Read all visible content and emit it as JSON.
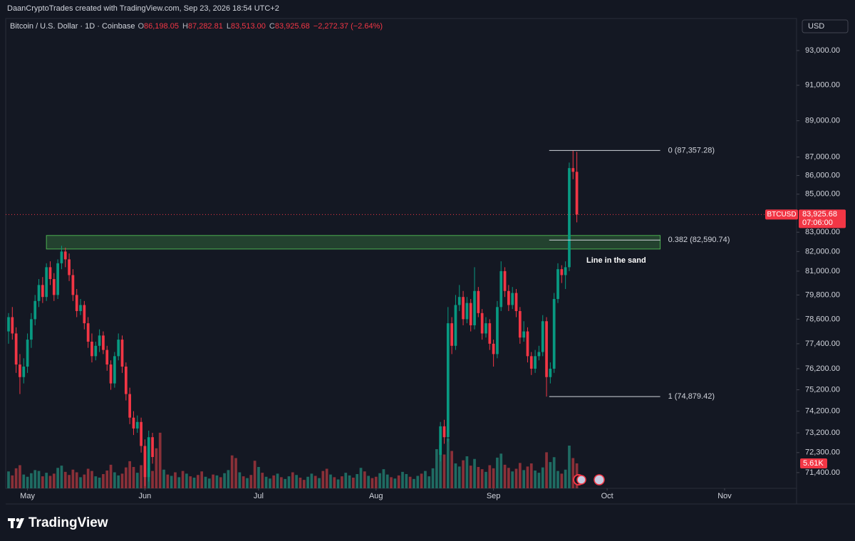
{
  "chart_data": {
    "type": "candlestick",
    "watermark": "DaanCryptoTrades created with TradingView.com, Sep 23, 2026 18:54 UTC+2",
    "symbol": "Bitcoin / U.S. Dollar · 1D · Coinbase",
    "ohlc_fields": [
      {
        "key": "O",
        "label": "86,198.05"
      },
      {
        "key": "H",
        "label": "87,282.81"
      },
      {
        "key": "L",
        "label": "83,513.00"
      },
      {
        "key": "C",
        "label": "83,925.68"
      }
    ],
    "change": "−2,272.37 (−2.64%)",
    "currency": "USD",
    "brand": "TradingView",
    "log_scale": true,
    "grid": false,
    "up_color": "#089981",
    "down_color": "#f23645",
    "xlim": [
      -0.75,
      208
    ],
    "xticks": [
      {
        "value": 5,
        "label": "May"
      },
      {
        "value": 36,
        "label": "Jun"
      },
      {
        "value": 66,
        "label": "Jul"
      },
      {
        "value": 97,
        "label": "Aug"
      },
      {
        "value": 128,
        "label": "Sep"
      },
      {
        "value": 158,
        "label": "Oct"
      },
      {
        "value": 189,
        "label": "Nov"
      }
    ],
    "ylim": [
      70700,
      94800
    ],
    "yticks": [
      {
        "value": 93000,
        "label": "93,000.00"
      },
      {
        "value": 91000,
        "label": "91,000.00"
      },
      {
        "value": 89000,
        "label": "89,000.00"
      },
      {
        "value": 87000,
        "label": "87,000.00"
      },
      {
        "value": 86000,
        "label": "86,000.00"
      },
      {
        "value": 85000,
        "label": "85,000.00"
      },
      {
        "value": 83000,
        "label": "83,000.00"
      },
      {
        "value": 82000,
        "label": "82,000.00"
      },
      {
        "value": 81000,
        "label": "81,000.00"
      },
      {
        "value": 79800,
        "label": "79,800.00"
      },
      {
        "value": 78600,
        "label": "78,600.00"
      },
      {
        "value": 77400,
        "label": "77,400.00"
      },
      {
        "value": 76200,
        "label": "76,200.00"
      },
      {
        "value": 75200,
        "label": "75,200.00"
      },
      {
        "value": 74200,
        "label": "74,200.00"
      },
      {
        "value": 73200,
        "label": "73,200.00"
      },
      {
        "value": 72300,
        "label": "72,300.00"
      },
      {
        "value": 71400,
        "label": "71,400.00"
      }
    ],
    "candles": [
      [
        78000,
        78900,
        77400,
        78700
      ],
      [
        78700,
        79200,
        77600,
        77900
      ],
      [
        77900,
        78200,
        76000,
        76400
      ],
      [
        76400,
        76900,
        75000,
        75800
      ],
      [
        75800,
        76700,
        75500,
        76300
      ],
      [
        76300,
        77900,
        76000,
        77600
      ],
      [
        77600,
        78900,
        77200,
        78600
      ],
      [
        78600,
        79800,
        78300,
        79500
      ],
      [
        79500,
        80600,
        79200,
        80300
      ],
      [
        80300,
        80700,
        79400,
        79700
      ],
      [
        79700,
        81400,
        79500,
        81200
      ],
      [
        81200,
        81500,
        80300,
        80600
      ],
      [
        80600,
        80900,
        79500,
        79800
      ],
      [
        79800,
        81600,
        79600,
        81400
      ],
      [
        81400,
        82300,
        81100,
        82000
      ],
      [
        82000,
        82200,
        81200,
        81600
      ],
      [
        81600,
        81900,
        80500,
        80800
      ],
      [
        80800,
        81100,
        79500,
        79800
      ],
      [
        79800,
        80100,
        78700,
        79000
      ],
      [
        79000,
        79600,
        78800,
        79300
      ],
      [
        79300,
        79500,
        78100,
        78400
      ],
      [
        78400,
        78700,
        77200,
        77500
      ],
      [
        77500,
        77900,
        76500,
        76800
      ],
      [
        76800,
        77500,
        76600,
        77300
      ],
      [
        77300,
        78100,
        77000,
        77800
      ],
      [
        77800,
        78000,
        76900,
        77100
      ],
      [
        77100,
        77300,
        76100,
        76400
      ],
      [
        76400,
        76600,
        75200,
        75500
      ],
      [
        75500,
        77000,
        75300,
        76800
      ],
      [
        76800,
        77900,
        76600,
        77600
      ],
      [
        77600,
        77800,
        76000,
        76300
      ],
      [
        76300,
        76500,
        74700,
        75000
      ],
      [
        75000,
        75300,
        73600,
        73900
      ],
      [
        73900,
        74200,
        73100,
        73400
      ],
      [
        73400,
        74000,
        73200,
        73700
      ],
      [
        73700,
        73900,
        72300,
        72600
      ],
      [
        72600,
        72900,
        70800,
        71200
      ],
      [
        71200,
        73300,
        71000,
        73000
      ],
      [
        73000,
        73200,
        71800,
        72100
      ],
      null,
      null,
      null,
      null,
      null,
      null,
      null,
      null,
      null,
      null,
      null,
      null,
      null,
      null,
      null,
      null,
      null,
      null,
      null,
      null,
      null,
      null,
      null,
      null,
      null,
      null,
      null,
      null,
      null,
      null,
      null,
      null,
      null,
      null,
      null,
      null,
      null,
      null,
      null,
      null,
      null,
      null,
      null,
      null,
      null,
      null,
      null,
      null,
      null,
      null,
      null,
      null,
      null,
      null,
      null,
      null,
      null,
      null,
      null,
      null,
      null,
      null,
      null,
      null,
      null,
      null,
      null,
      null,
      null,
      null,
      null,
      null,
      null,
      null,
      null,
      [
        72200,
        73700,
        71900,
        73500
      ],
      [
        73500,
        73800,
        72700,
        73000
      ],
      [
        73000,
        79200,
        72800,
        78400
      ],
      [
        78400,
        78700,
        76900,
        77300
      ],
      [
        77300,
        79800,
        77100,
        79300
      ],
      [
        79300,
        80300,
        79000,
        79700
      ],
      [
        79700,
        80000,
        78300,
        78600
      ],
      [
        78600,
        79700,
        78400,
        79400
      ],
      [
        79400,
        79600,
        78000,
        78300
      ],
      [
        78300,
        81200,
        78100,
        80000
      ],
      [
        80000,
        80200,
        78700,
        78900
      ],
      [
        78900,
        79100,
        77600,
        77900
      ],
      [
        77900,
        78700,
        77700,
        78400
      ],
      [
        78400,
        78600,
        77100,
        77400
      ],
      [
        77400,
        77600,
        76300,
        76900
      ],
      [
        76900,
        79500,
        76700,
        79200
      ],
      [
        79200,
        81500,
        79000,
        81000
      ],
      [
        81000,
        81200,
        79700,
        80000
      ],
      [
        80000,
        80300,
        79000,
        79300
      ],
      [
        79300,
        80200,
        79100,
        79900
      ],
      [
        79900,
        80100,
        78700,
        79000
      ],
      [
        79000,
        79200,
        77400,
        77700
      ],
      [
        77700,
        78500,
        77500,
        78000
      ],
      [
        78000,
        78200,
        76500,
        76800
      ],
      [
        76800,
        77000,
        75900,
        76200
      ],
      [
        76200,
        77100,
        76000,
        76800
      ],
      [
        76800,
        77300,
        76600,
        77000
      ],
      [
        77000,
        78800,
        76800,
        78500
      ],
      [
        78500,
        78700,
        74879.42,
        75800
      ],
      [
        75800,
        76500,
        75500,
        76200
      ],
      [
        76200,
        79900,
        76000,
        79600
      ],
      [
        79600,
        81400,
        79400,
        81100
      ],
      [
        81100,
        81300,
        80400,
        80800
      ],
      [
        80800,
        81500,
        80100,
        81200
      ],
      [
        81200,
        86700,
        81000,
        86400
      ],
      [
        86400,
        87357.28,
        85800,
        86198.05
      ],
      [
        86198.05,
        87282.81,
        83513,
        83925.68
      ]
    ],
    "volume": {
      "ylim": [
        0,
        16000
      ],
      "up_color": "#1f6b62",
      "down_color": "#8a3038",
      "current_label": "5.61K",
      "directions": [
        "u",
        "d",
        "d",
        "d",
        "u",
        "u",
        "u",
        "u",
        "u",
        "d",
        "u",
        "d",
        "d",
        "u",
        "u",
        "d",
        "d",
        "d",
        "d",
        "u",
        "d",
        "d",
        "d",
        "u",
        "u",
        "d",
        "d",
        "d",
        "u",
        "u",
        "d",
        "d",
        "d",
        "d",
        "u",
        "d",
        "d",
        "u",
        "d",
        "d",
        "d",
        "u",
        "d",
        "u",
        "d",
        "u",
        "d",
        "u",
        "d",
        "u",
        "d",
        "d",
        "u",
        "u",
        "d",
        "u",
        "d",
        "u",
        "u",
        "d",
        "d",
        "u",
        "d",
        "u",
        "d",
        "d",
        "u",
        "d",
        "u",
        "u",
        "d",
        "u",
        "d",
        "u",
        "u",
        "d",
        "u",
        "d",
        "d",
        "u",
        "u",
        "d",
        "u",
        "d",
        "d",
        "u",
        "d",
        "u",
        "d",
        "u",
        "u",
        "d",
        "u",
        "u",
        "d",
        "u",
        "d",
        "d",
        "u",
        "u",
        "u",
        "d",
        "u",
        "d",
        "u",
        "u",
        "d",
        "u",
        "u",
        "d",
        "u",
        "u",
        "u",
        "u",
        "u",
        "d",
        "u",
        "d",
        "u",
        "u",
        "d",
        "u",
        "d",
        "u",
        "d",
        "d",
        "u",
        "d",
        "d",
        "u",
        "u",
        "d",
        "d",
        "u",
        "d",
        "d",
        "u",
        "d",
        "d",
        "u",
        "u",
        "u",
        "d",
        "u",
        "u",
        "u",
        "d",
        "u",
        "u",
        "d",
        "d"
      ],
      "values": [
        3800,
        2900,
        4500,
        5200,
        3100,
        2600,
        3400,
        4100,
        3900,
        2700,
        3500,
        2800,
        3300,
        4600,
        5100,
        3700,
        3000,
        4200,
        3600,
        2500,
        3100,
        4400,
        3900,
        2700,
        2400,
        3200,
        4000,
        5300,
        3600,
        2900,
        3300,
        4700,
        6100,
        4800,
        3500,
        5200,
        8300,
        4600,
        3900,
        9000,
        12500,
        4200,
        3100,
        2800,
        3600,
        2500,
        3900,
        3300,
        2700,
        2400,
        3000,
        3800,
        2600,
        2200,
        3100,
        2900,
        2500,
        3400,
        4100,
        7400,
        6800,
        3600,
        2700,
        2300,
        3000,
        6200,
        4800,
        3500,
        2600,
        2200,
        2900,
        3300,
        2500,
        2100,
        2700,
        3600,
        3000,
        2400,
        1900,
        2600,
        3300,
        2800,
        2300,
        3900,
        4400,
        3100,
        2500,
        2000,
        2700,
        3500,
        2900,
        2400,
        3200,
        4600,
        3800,
        2800,
        2300,
        2600,
        3400,
        4300,
        3100,
        2500,
        2200,
        2900,
        3700,
        3200,
        2600,
        2100,
        2800,
        3300,
        3900,
        2700,
        4500,
        8800,
        9800,
        7600,
        11200,
        8400,
        5600,
        4900,
        6300,
        7200,
        5100,
        6600,
        4800,
        4300,
        3700,
        5200,
        4500,
        6900,
        7800,
        5300,
        4600,
        3800,
        4400,
        5700,
        4100,
        4900,
        5600,
        4000,
        3500,
        4700,
        8100,
        5900,
        7000,
        3900,
        3300,
        4200,
        9600,
        6800,
        5610
      ]
    },
    "price_label": {
      "symbol": "BTCUSD",
      "price": "83,925.68",
      "countdown": "07:06:00"
    },
    "zone": {
      "top": 82830,
      "bottom": 82130,
      "start": 10,
      "end": 172
    },
    "annotation": "Line in the sand",
    "fib": {
      "start": 142.7,
      "end": 172,
      "levels": [
        {
          "value": 87357.28,
          "label": "0 (87,357.28)"
        },
        {
          "value": 82590.74,
          "label": "0.382 (82,590.74)"
        },
        {
          "value": 74879.42,
          "label": "1 (74,879.42)"
        }
      ]
    }
  }
}
